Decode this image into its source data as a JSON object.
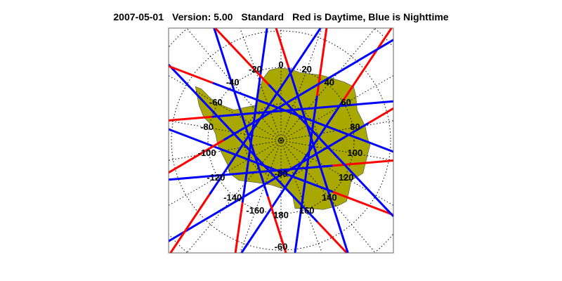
{
  "header": {
    "date": "2007-05-01",
    "version": "Version: 5.00",
    "product": "Standard",
    "legend": "Red is Daytime, Blue is Nighttime"
  },
  "map": {
    "projection": "south polar stereographic",
    "region": "Antarctica",
    "land_color": "#a8a800",
    "day_color": "#ff0000",
    "night_color": "#0000ff",
    "longitude_labels": [
      "0",
      "20",
      "40",
      "60",
      "80",
      "100",
      "120",
      "140",
      "160",
      "180",
      "-160",
      "-140",
      "-120",
      "-100",
      "-80",
      "-60",
      "-40",
      "-20"
    ],
    "latitude_labels": [
      "-80",
      "-60"
    ]
  }
}
